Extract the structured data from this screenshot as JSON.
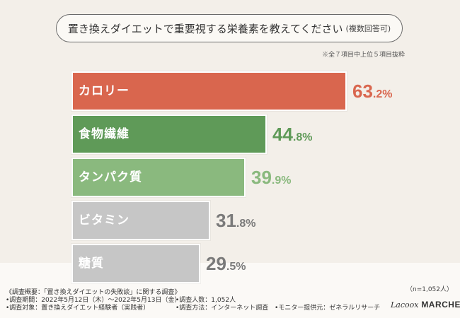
{
  "title": "置き換えダイエットで重要視する栄養素を教えてください",
  "title_sub": "(複数回答可)",
  "note": "※全７項目中上位５項目抜粋",
  "chart_data": {
    "type": "bar",
    "orientation": "horizontal",
    "categories": [
      "カロリー",
      "食物繊維",
      "タンパク質",
      "ビタミン",
      "糖質"
    ],
    "values": [
      63.2,
      44.8,
      39.9,
      31.8,
      29.5
    ],
    "value_labels": [
      {
        "int": "63",
        "dec": ".2%"
      },
      {
        "int": "44",
        "dec": ".8%"
      },
      {
        "int": "39",
        "dec": ".9%"
      },
      {
        "int": "31",
        "dec": ".8%"
      },
      {
        "int": "29",
        "dec": ".5%"
      }
    ],
    "colors": [
      "#d9664e",
      "#5f9a58",
      "#8ab97e",
      "#c6c6c6",
      "#c6c6c6"
    ],
    "value_colors": [
      "#d9664e",
      "#5f9a58",
      "#8ab97e",
      "#7a7a7a",
      "#7a7a7a"
    ],
    "grid": false
  },
  "sample_size": "（n=1,052人）",
  "footer": {
    "line1": "《調査概要：「置き換えダイエットの失敗談」に関する調査》",
    "period": "•調査期間：2022年5月12日（木）〜2022年5月13日（金）",
    "target": "•調査対象：置き換えダイエット経験者（実践者）",
    "count": "•調査人数：1,052人",
    "method": "•調査方法：インターネット調査",
    "provider": "•モニター提供元：ゼネラルリサーチ"
  },
  "logo": {
    "script": "Lacoox",
    "brand": "MARCHE"
  }
}
